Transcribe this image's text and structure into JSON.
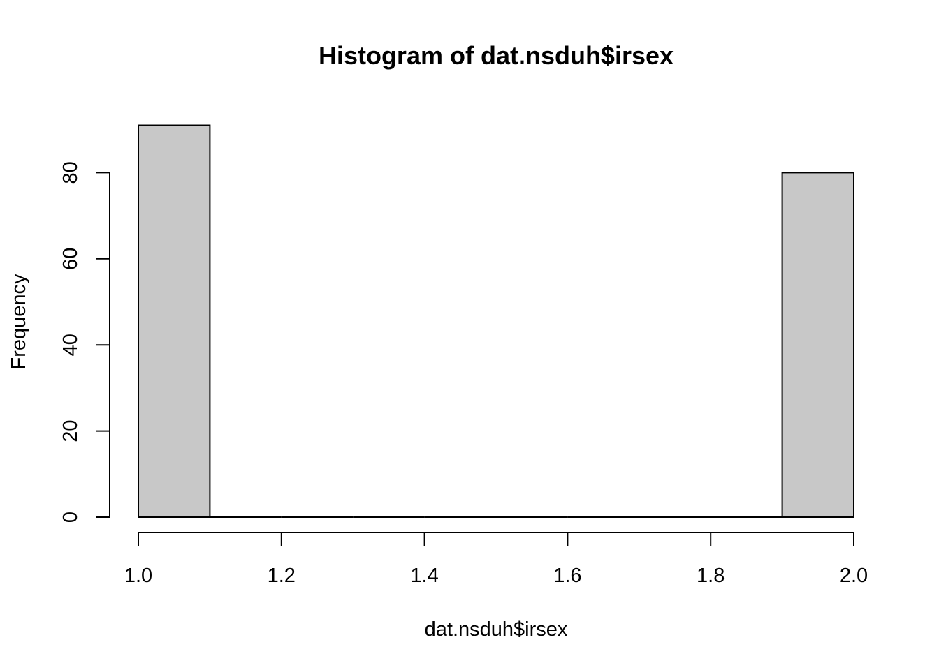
{
  "chart_data": {
    "type": "bar",
    "title": "Histogram of dat.nsduh$irsex",
    "xlabel": "dat.nsduh$irsex",
    "ylabel": "Frequency",
    "bins": [
      {
        "start": 1.0,
        "end": 1.1,
        "count": 91
      },
      {
        "start": 1.1,
        "end": 1.2,
        "count": 0
      },
      {
        "start": 1.2,
        "end": 1.3,
        "count": 0
      },
      {
        "start": 1.3,
        "end": 1.4,
        "count": 0
      },
      {
        "start": 1.4,
        "end": 1.5,
        "count": 0
      },
      {
        "start": 1.5,
        "end": 1.6,
        "count": 0
      },
      {
        "start": 1.6,
        "end": 1.7,
        "count": 0
      },
      {
        "start": 1.7,
        "end": 1.8,
        "count": 0
      },
      {
        "start": 1.8,
        "end": 1.9,
        "count": 0
      },
      {
        "start": 1.9,
        "end": 2.0,
        "count": 80
      }
    ],
    "xlim": [
      1.0,
      2.0
    ],
    "x_ticks": [
      "1.0",
      "1.2",
      "1.4",
      "1.6",
      "1.8",
      "2.0"
    ],
    "y_ticks": [
      "0",
      "20",
      "40",
      "60",
      "80"
    ],
    "bar_fill": "#c8c8c8",
    "bar_stroke": "#000000",
    "grid": false,
    "legend": "none"
  }
}
